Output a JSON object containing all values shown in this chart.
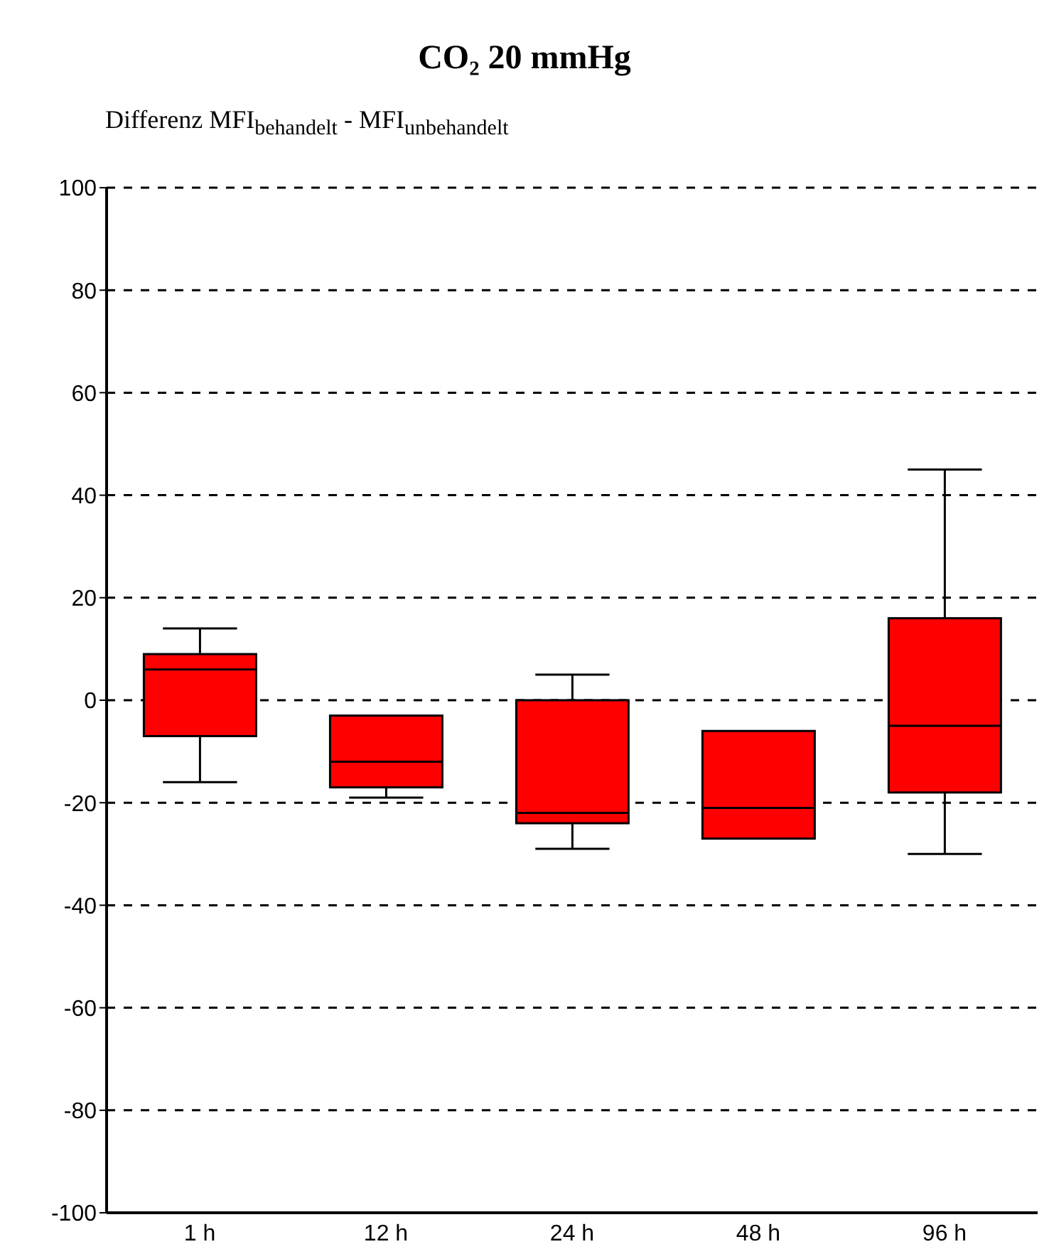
{
  "chart_data": {
    "type": "box",
    "title": "CO₂ 20 mmHg",
    "ylabel": "Differenz MFI$_{behandelt}$  - MFI$_{unbehandelt}$",
    "categories": [
      "1 h",
      "12 h",
      "24 h",
      "48 h",
      "96 h"
    ],
    "color": "#ff0000",
    "boxes": [
      {
        "low": -16,
        "q1": -7,
        "median": 6,
        "q3": 9,
        "high": 14
      },
      {
        "low": -19,
        "q1": -17,
        "median": -12,
        "q3": -3,
        "high": -3
      },
      {
        "low": -29,
        "q1": -24,
        "median": -22,
        "q3": 0,
        "high": 5
      },
      {
        "low": -27,
        "q1": -27,
        "median": -21,
        "q3": -6,
        "high": -6
      },
      {
        "low": -30,
        "q1": -18,
        "median": -5,
        "q3": 16,
        "high": 45
      }
    ],
    "ylim": [
      -100,
      100
    ],
    "yticks": [
      -100,
      -80,
      -60,
      -40,
      -20,
      0,
      20,
      40,
      60,
      80,
      100
    ],
    "grid": "y"
  }
}
